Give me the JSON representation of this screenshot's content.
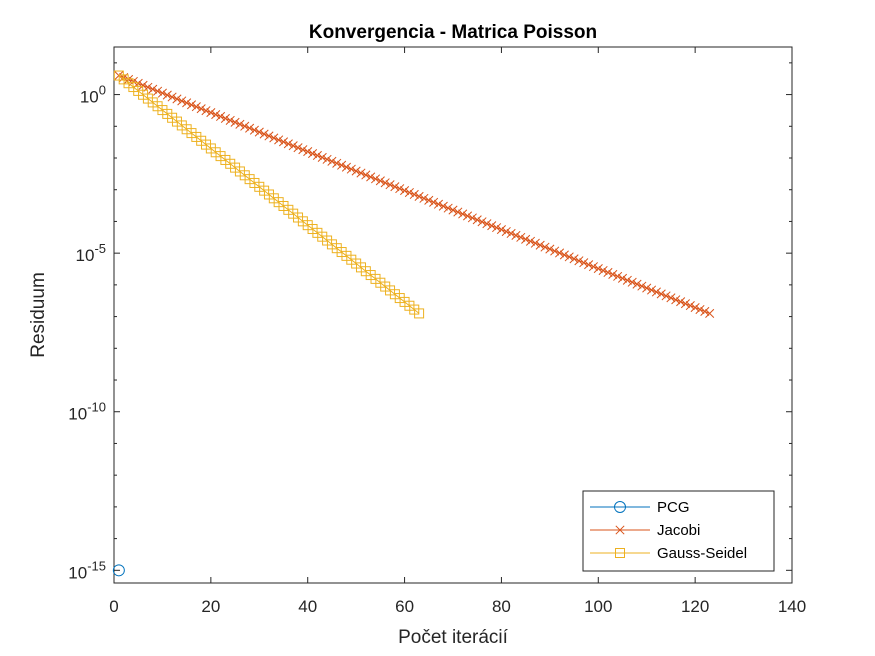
{
  "chart_data": {
    "type": "line",
    "title": "Konvergencia - Matrica Poisson",
    "xlabel": "Počet iterácií",
    "ylabel": "Residuum",
    "xlim": [
      0,
      140
    ],
    "ylim_log10": [
      -15.4,
      1.5
    ],
    "y_scale": "log",
    "grid": false,
    "legend_location": "bottom-right",
    "x_ticks": [
      0,
      20,
      40,
      60,
      80,
      100,
      120,
      140
    ],
    "x_tick_labels": [
      "0",
      "20",
      "40",
      "60",
      "80",
      "100",
      "120",
      "140"
    ],
    "y_ticks_log10": [
      0,
      -5,
      -10,
      -15
    ],
    "y_tick_labels": [
      {
        "base": "10",
        "exp": "0"
      },
      {
        "base": "10",
        "exp": "-5"
      },
      {
        "base": "10",
        "exp": "-10"
      },
      {
        "base": "10",
        "exp": "-15"
      }
    ],
    "series": [
      {
        "name": "PCG",
        "color": "#0072BD",
        "marker": "circle",
        "x": [
          1
        ],
        "log10_y": [
          -15
        ]
      },
      {
        "name": "Jacobi",
        "color": "#D95319",
        "marker": "x",
        "x_start": 1,
        "x_end": 123,
        "log10_y_start": 0.6,
        "log10_y_end": -6.9
      },
      {
        "name": "Gauss-Seidel",
        "color": "#EDB120",
        "marker": "square",
        "x_start": 1,
        "x_end": 63,
        "log10_y_start": 0.6,
        "log10_y_end": -6.9
      }
    ]
  }
}
